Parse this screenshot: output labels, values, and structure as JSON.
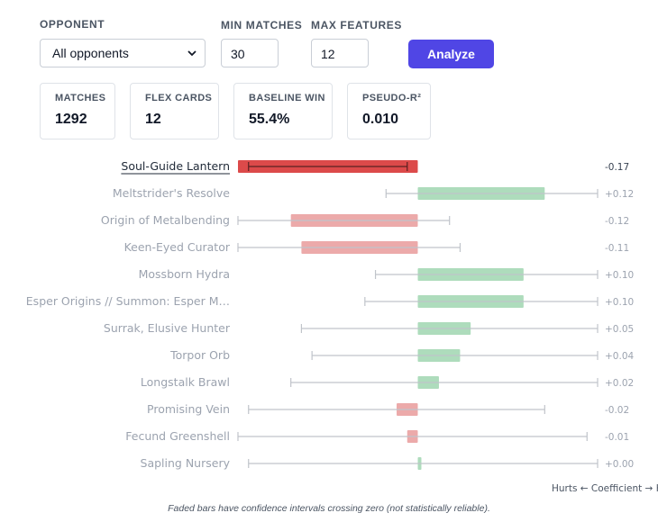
{
  "controls": {
    "opponent_label": "OPPONENT",
    "opponent_value": "All opponents",
    "min_matches_label": "MIN MATCHES",
    "min_matches_value": "30",
    "max_features_label": "MAX FEATURES",
    "max_features_value": "12",
    "analyze_label": "Analyze"
  },
  "stats": [
    {
      "title": "MATCHES",
      "value": "1292"
    },
    {
      "title": "FLEX CARDS",
      "value": "12"
    },
    {
      "title": "BASELINE WIN",
      "value": "55.4%"
    },
    {
      "title": "PSEUDO-R²",
      "value": "0.010"
    }
  ],
  "chart_data": {
    "type": "bar",
    "orientation": "horizontal",
    "categories": [
      "Soul-Guide Lantern",
      "Meltstrider's Resolve",
      "Origin of Metalbending",
      "Keen-Eyed Curator",
      "Mossborn Hydra",
      "Esper Origins // Summon: Esper M…",
      "Surrak, Elusive Hunter",
      "Torpor Orb",
      "Longstalk Brawl",
      "Promising Vein",
      "Fecund Greenshell",
      "Sapling Nursery"
    ],
    "values": [
      -0.17,
      0.12,
      -0.12,
      -0.11,
      0.1,
      0.1,
      0.05,
      0.04,
      0.02,
      -0.02,
      -0.01,
      0.0
    ],
    "ci_low": [
      -0.16,
      -0.03,
      -0.17,
      -0.17,
      -0.04,
      -0.05,
      -0.11,
      -0.1,
      -0.12,
      -0.16,
      -0.17,
      -0.16
    ],
    "ci_high": [
      -0.01,
      0.17,
      0.03,
      0.04,
      0.17,
      0.17,
      0.17,
      0.17,
      0.17,
      0.12,
      0.16,
      0.17
    ],
    "value_labels": [
      "-0.17",
      "+0.12",
      "-0.12",
      "-0.11",
      "+0.10",
      "+0.10",
      "+0.05",
      "+0.04",
      "+0.02",
      "-0.02",
      "-0.01",
      "+0.00"
    ],
    "significant": [
      true,
      false,
      false,
      false,
      false,
      false,
      false,
      false,
      false,
      false,
      false,
      false
    ],
    "xlim": [
      -0.17,
      0.17
    ],
    "axis_note": "Hurts ← Coefficient → He",
    "colors": {
      "negative": "#dc4a4a",
      "positive": "#4caf70",
      "negative_faded": "#ecaaaa",
      "positive_faded": "#aedcbc",
      "whisker": "#c0c4ca"
    }
  },
  "footnote": "Faded bars have confidence intervals crossing zero (not statistically reliable)."
}
